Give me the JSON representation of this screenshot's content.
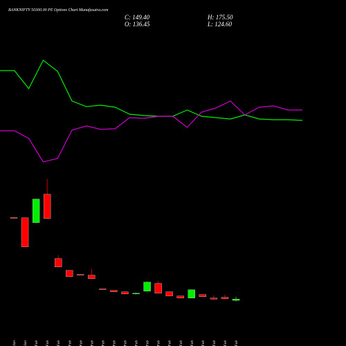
{
  "title": "BANKNIFTY 50300.00 PE Options Chart Munafasutra.com",
  "info": [
    "C: 149.40",
    "H: 175.50",
    "O: 136.45",
    "L: 124.60"
  ],
  "chart_data": [
    {
      "type": "line",
      "ylim": [
        0,
        190
      ],
      "series": [
        {
          "color": "#00ee00",
          "values": [
            148,
            148,
            122,
            163,
            147,
            104,
            96,
            98,
            95,
            85,
            83,
            82,
            82,
            91,
            82,
            80,
            78,
            84,
            78,
            77,
            77,
            76
          ]
        },
        {
          "color": "#cc00cc",
          "values": [
            61,
            61,
            50,
            16,
            21,
            62,
            68,
            63,
            64,
            80,
            79,
            82,
            82,
            66,
            88,
            94,
            104,
            84,
            95,
            97,
            91,
            91
          ]
        }
      ]
    },
    {
      "type": "candlestick",
      "categories": [
        "23 Jan",
        "27 Jan",
        "01 Feb",
        "02 Feb",
        "03 Feb",
        "04 Feb",
        "05 Feb",
        "06 Feb",
        "09 Feb",
        "10 Feb",
        "11 Feb",
        "12 Feb",
        "13 Feb",
        "16 Feb",
        "17 Feb",
        "18 Feb",
        "19 Feb",
        "20 Feb",
        "23 Feb",
        "24 Feb",
        "25 Feb"
      ],
      "open": [
        1010,
        1008,
        957,
        1256,
        577,
        453,
        410,
        402,
        258,
        241,
        226,
        205,
        234,
        315,
        226,
        183,
        161,
        197,
        160,
        168,
        136.45
      ],
      "high": [
        1015,
        1010,
        1210,
        1417,
        613,
        455,
        412,
        467,
        260,
        243,
        230,
        215,
        335,
        343,
        230,
        185,
        252,
        200,
        190,
        197,
        175.5
      ],
      "low": [
        1000,
        700,
        950,
        995,
        485,
        385,
        403,
        360,
        252,
        224,
        200,
        200,
        230,
        208,
        180,
        158,
        158,
        172,
        145,
        150,
        124.6
      ],
      "close": [
        1005,
        701,
        1205,
        1000,
        489,
        387,
        405,
        365,
        254,
        226,
        205,
        212,
        329,
        212,
        183,
        161,
        248,
        175,
        150,
        154,
        149.4
      ],
      "up_color": "#00ee00",
      "down_color": "#ff0000",
      "ylim": [
        20,
        1480
      ]
    }
  ]
}
